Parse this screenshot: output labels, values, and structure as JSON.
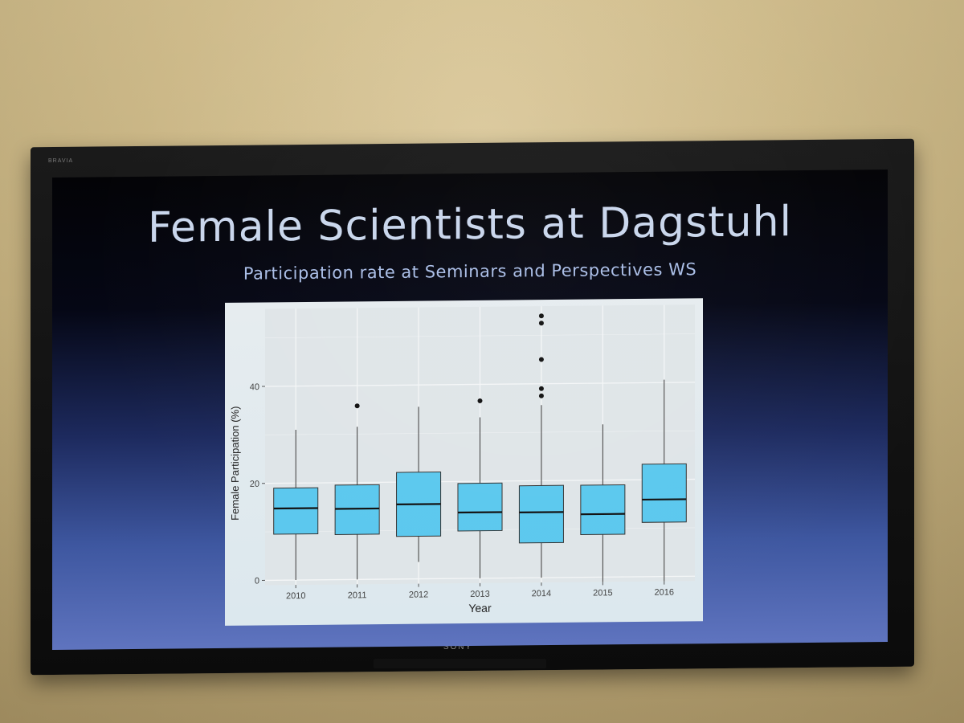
{
  "tv": {
    "brand": "BRAVIA",
    "logo": "SONY"
  },
  "slide": {
    "title": "Female Scientists at Dagstuhl",
    "subtitle": "Participation rate at Seminars and Perspectives WS"
  },
  "colors": {
    "box_fill": "#5bc8ee",
    "panel_bg": "#dfe5e8",
    "grid": "#f4f6f7",
    "outline": "#333333"
  },
  "chart_data": {
    "type": "boxplot",
    "xlabel": "Year",
    "ylabel": "Female Participation (%)",
    "categories": [
      "2010",
      "2011",
      "2012",
      "2013",
      "2014",
      "2015",
      "2016"
    ],
    "yticks": [
      0,
      20,
      40
    ],
    "ylim": [
      -1,
      56
    ],
    "grid": true,
    "boxes": [
      {
        "year": "2010",
        "whisker_low": 0,
        "q1": 9.5,
        "median": 14.8,
        "q3": 19,
        "whisker_high": 31,
        "outliers": []
      },
      {
        "year": "2011",
        "whisker_low": 0,
        "q1": 9.3,
        "median": 14.6,
        "q3": 19.5,
        "whisker_high": 31.5,
        "outliers": [
          35.8
        ]
      },
      {
        "year": "2012",
        "whisker_low": 3.5,
        "q1": 8.8,
        "median": 15.4,
        "q3": 22,
        "whisker_high": 35.5,
        "outliers": []
      },
      {
        "year": "2013",
        "whisker_low": 0,
        "q1": 9.8,
        "median": 13.6,
        "q3": 19.6,
        "whisker_high": 33.2,
        "outliers": [
          36.6
        ]
      },
      {
        "year": "2014",
        "whisker_low": 0,
        "q1": 7.2,
        "median": 13.5,
        "q3": 19,
        "whisker_high": 35.6,
        "outliers": [
          37.5,
          39,
          45,
          52.5,
          54
        ]
      },
      {
        "year": "2015",
        "whisker_low": -1,
        "q1": 8.8,
        "median": 13,
        "q3": 19,
        "whisker_high": 31.5,
        "outliers": []
      },
      {
        "year": "2016",
        "whisker_low": -1,
        "q1": 11.2,
        "median": 15.9,
        "q3": 23.2,
        "whisker_high": 40.6,
        "outliers": []
      }
    ]
  }
}
